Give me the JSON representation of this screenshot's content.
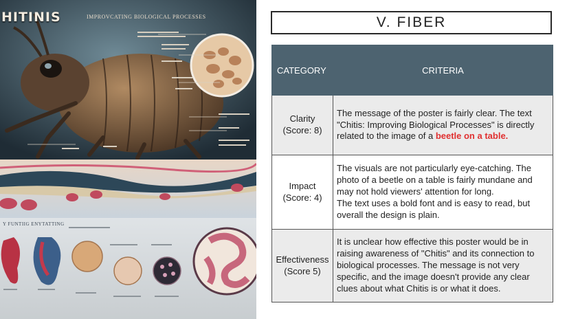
{
  "poster": {
    "title": "HITINIS",
    "subtitle": "IMPROVCATING BIOLOGICAL PROCESSES",
    "band_label": "Y FUNTIIG ENYTATTING"
  },
  "section_title": "V. FIBER",
  "table": {
    "headers": {
      "category": "CATEGORY",
      "criteria": "CRITERIA"
    },
    "rows": [
      {
        "category": "Clarity",
        "score": "(Score: 8)",
        "criteria_text": "The message of the poster is fairly clear. The text \"Chitis: Improving Biological Processes\" is directly related to the image of a ",
        "criteria_highlight": "beetle on a table."
      },
      {
        "category": "Impact",
        "score": "(Score: 4)",
        "criteria_text": "The visuals are not particularly eye-catching. The photo of a beetle on a table is fairly mundane and may not hold viewers' attention for long.",
        "criteria_text_2": "The text uses a bold font and is easy to read, but overall the design is plain."
      },
      {
        "category": "Effectiveness",
        "score": "(Score 5)",
        "criteria_text": "It is unclear how effective this poster would be in raising awareness of \"Chitis\" and its connection to biological processes. The message is not very specific, and the image doesn't provide any clear clues about what Chitis is or what it does."
      }
    ]
  },
  "colors": {
    "header_bg": "#4d6370",
    "highlight": "#e03030",
    "shaded_row": "#ebebeb"
  }
}
